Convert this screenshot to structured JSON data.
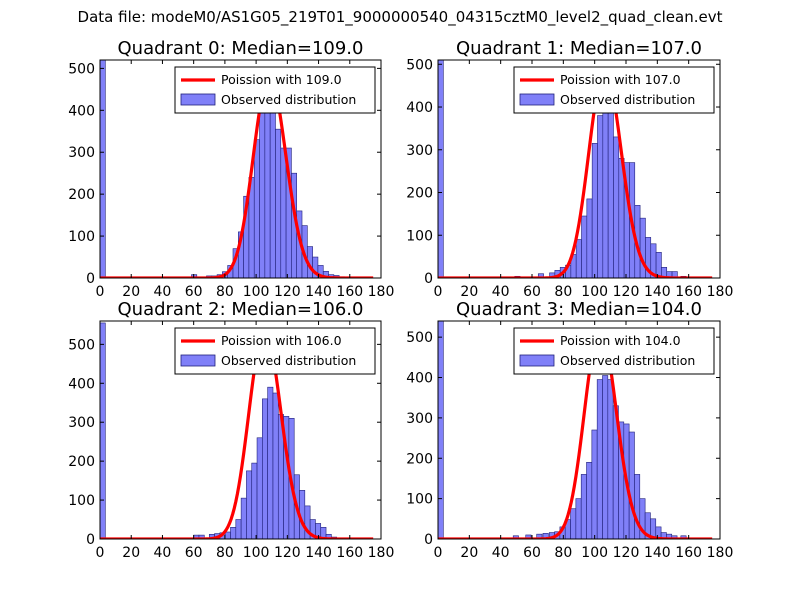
{
  "page": {
    "title": "Data file: modeM0/AS1G05_219T01_9000000540_04315cztM0_level2_quad_clean.evt"
  },
  "colors": {
    "bar_fill": "#8080f8",
    "bar_edge": "#20207a",
    "poisson_line": "#ff0000",
    "axes": "#000000",
    "background": "#ffffff"
  },
  "chart_data": [
    {
      "type": "bar",
      "title": "Quadrant 0: Median=109.0",
      "xlim": [
        0,
        180
      ],
      "ylim": [
        0,
        520
      ],
      "xticks": [
        0,
        20,
        40,
        60,
        80,
        100,
        120,
        140,
        160,
        180
      ],
      "yticks": [
        0,
        100,
        200,
        300,
        400,
        500
      ],
      "bin_width": 3.4,
      "bins": [
        [
          0,
          520
        ],
        [
          58.6,
          8
        ],
        [
          68.2,
          5
        ],
        [
          71.6,
          5
        ],
        [
          75,
          8
        ],
        [
          78.4,
          15
        ],
        [
          81.8,
          30
        ],
        [
          85.2,
          70
        ],
        [
          88.6,
          110
        ],
        [
          92,
          195
        ],
        [
          95.4,
          240
        ],
        [
          98.8,
          330
        ],
        [
          102.2,
          400
        ],
        [
          105.6,
          455
        ],
        [
          109,
          420
        ],
        [
          112.4,
          355
        ],
        [
          115.8,
          310
        ],
        [
          119.2,
          310
        ],
        [
          122.6,
          250
        ],
        [
          126,
          160
        ],
        [
          129.4,
          125
        ],
        [
          132.8,
          75
        ],
        [
          136.2,
          50
        ],
        [
          139.6,
          30
        ],
        [
          143,
          16
        ],
        [
          146.4,
          8
        ],
        [
          149.8,
          6
        ],
        [
          153.2,
          3
        ],
        [
          156.6,
          2
        ]
      ],
      "poisson": {
        "label": "Poission with 109.0",
        "mean": 109.0,
        "peak": 480
      },
      "legend": {
        "line_label": "Poission with 109.0",
        "bar_label": "Observed distribution",
        "loc": "upper right"
      }
    },
    {
      "type": "bar",
      "title": "Quadrant 1: Median=107.0",
      "xlim": [
        0,
        180
      ],
      "ylim": [
        0,
        510
      ],
      "xticks": [
        0,
        20,
        40,
        60,
        80,
        100,
        120,
        140,
        160,
        180
      ],
      "yticks": [
        0,
        100,
        200,
        300,
        400,
        500
      ],
      "bin_width": 3.4,
      "bins": [
        [
          0,
          510
        ],
        [
          49,
          4
        ],
        [
          64,
          10
        ],
        [
          71.2,
          12
        ],
        [
          74.6,
          18
        ],
        [
          78,
          25
        ],
        [
          81.4,
          30
        ],
        [
          84.8,
          55
        ],
        [
          88.2,
          90
        ],
        [
          91.6,
          145
        ],
        [
          95,
          185
        ],
        [
          98.4,
          315
        ],
        [
          101.8,
          380
        ],
        [
          105.2,
          460
        ],
        [
          108.6,
          390
        ],
        [
          112,
          330
        ],
        [
          115.4,
          280
        ],
        [
          118.8,
          270
        ],
        [
          122.2,
          270
        ],
        [
          125.6,
          170
        ],
        [
          129,
          140
        ],
        [
          132.4,
          95
        ],
        [
          135.8,
          80
        ],
        [
          139.2,
          60
        ],
        [
          142.6,
          25
        ],
        [
          146,
          15
        ],
        [
          149.4,
          15
        ],
        [
          155,
          4
        ]
      ],
      "poisson": {
        "label": "Poission with 107.0",
        "mean": 107.0,
        "peak": 487
      },
      "legend": {
        "line_label": "Poission with 107.0",
        "bar_label": "Observed distribution",
        "loc": "upper right"
      }
    },
    {
      "type": "bar",
      "title": "Quadrant 2: Median=106.0",
      "xlim": [
        0,
        180
      ],
      "ylim": [
        0,
        560
      ],
      "xticks": [
        0,
        20,
        40,
        60,
        80,
        100,
        120,
        140,
        160,
        180
      ],
      "yticks": [
        0,
        100,
        200,
        300,
        400,
        500
      ],
      "bin_width": 3.4,
      "bins": [
        [
          0,
          555
        ],
        [
          60,
          10
        ],
        [
          63.4,
          10
        ],
        [
          70,
          12
        ],
        [
          73.4,
          14
        ],
        [
          76.8,
          16
        ],
        [
          80.2,
          18
        ],
        [
          83.6,
          30
        ],
        [
          87,
          50
        ],
        [
          90.4,
          105
        ],
        [
          93.8,
          175
        ],
        [
          97.2,
          195
        ],
        [
          100.6,
          260
        ],
        [
          104,
          360
        ],
        [
          107.4,
          390
        ],
        [
          110.8,
          375
        ],
        [
          114.2,
          320
        ],
        [
          117.6,
          315
        ],
        [
          121,
          310
        ],
        [
          124.4,
          165
        ],
        [
          127.8,
          125
        ],
        [
          131.2,
          85
        ],
        [
          134.6,
          50
        ],
        [
          138,
          40
        ],
        [
          141.4,
          30
        ],
        [
          144.8,
          12
        ],
        [
          148.2,
          5
        ]
      ],
      "poisson": {
        "label": "Poission with 106.0",
        "mean": 106.0,
        "peak": 535
      },
      "legend": {
        "line_label": "Poission with 106.0",
        "bar_label": "Observed distribution",
        "loc": "upper right"
      }
    },
    {
      "type": "bar",
      "title": "Quadrant 3: Median=104.0",
      "xlim": [
        0,
        180
      ],
      "ylim": [
        0,
        540
      ],
      "xticks": [
        0,
        20,
        40,
        60,
        80,
        100,
        120,
        140,
        160,
        180
      ],
      "yticks": [
        0,
        100,
        200,
        300,
        400,
        500
      ],
      "bin_width": 3.4,
      "bins": [
        [
          0,
          540
        ],
        [
          48,
          8
        ],
        [
          56,
          10
        ],
        [
          63,
          12
        ],
        [
          67,
          14
        ],
        [
          71,
          16
        ],
        [
          74.4,
          18
        ],
        [
          77.8,
          30
        ],
        [
          81.2,
          48
        ],
        [
          84.6,
          75
        ],
        [
          88,
          100
        ],
        [
          91.4,
          160
        ],
        [
          94.8,
          190
        ],
        [
          98.2,
          270
        ],
        [
          101.6,
          395
        ],
        [
          105,
          405
        ],
        [
          108.4,
          395
        ],
        [
          111.8,
          330
        ],
        [
          115.2,
          290
        ],
        [
          118.6,
          285
        ],
        [
          122,
          265
        ],
        [
          125.4,
          160
        ],
        [
          128.8,
          100
        ],
        [
          132.2,
          65
        ],
        [
          135.6,
          50
        ],
        [
          139,
          30
        ],
        [
          142.4,
          16
        ],
        [
          145.8,
          12
        ],
        [
          149.2,
          8
        ],
        [
          155,
          8
        ]
      ],
      "poisson": {
        "label": "Poission with 104.0",
        "mean": 104.0,
        "peak": 520
      },
      "legend": {
        "line_label": "Poission with 104.0",
        "bar_label": "Observed distribution",
        "loc": "upper right"
      }
    }
  ]
}
